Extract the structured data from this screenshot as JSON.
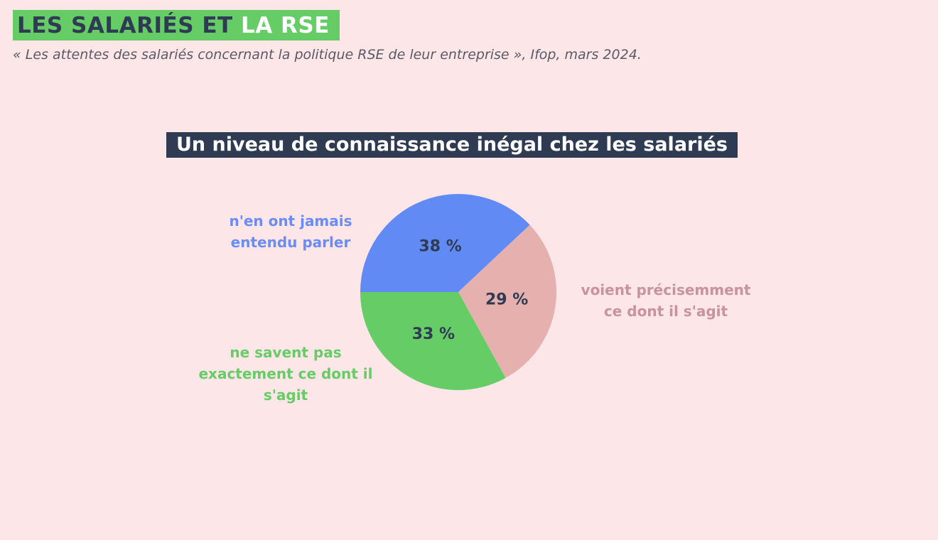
{
  "header": {
    "title_part1": "LES SALARIÉS ET",
    "title_part2": "LA RSE",
    "source": "« Les attentes des salariés concernant la politique RSE de leur entreprise », Ifop, mars 2024."
  },
  "chart_data": {
    "type": "pie",
    "title": "Un niveau de connaissance inégal chez les salariés",
    "unit": "%",
    "slices": [
      {
        "label_lines": [
          "n'en ont jamais",
          "entendu parler"
        ],
        "value": 38,
        "value_label": "38 %",
        "color": "#628af5"
      },
      {
        "label_lines": [
          "voient précisemment",
          "ce dont il s'agit"
        ],
        "value": 29,
        "value_label": "29 %",
        "color": "#e5b0ae"
      },
      {
        "label_lines": [
          "ne savent pas",
          "exactement ce dont il",
          "s'agit"
        ],
        "value": 33,
        "value_label": "33 %",
        "color": "#66cc66"
      }
    ],
    "value_label_color": "#2e3b52",
    "background_color": "#fce6e8"
  }
}
